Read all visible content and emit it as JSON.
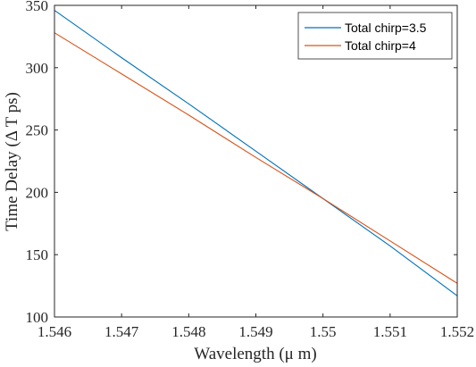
{
  "chart_data": {
    "type": "line",
    "title": "",
    "xlabel": "Wavelength (μ m)",
    "ylabel": "Time Delay (Δ T ps)",
    "xlim": [
      1.546,
      1.552
    ],
    "ylim": [
      100,
      350
    ],
    "xticks": [
      1.546,
      1.547,
      1.548,
      1.549,
      1.55,
      1.551,
      1.552
    ],
    "xtick_labels": [
      "1.546",
      "1.547",
      "1.548",
      "1.549",
      "1.55",
      "1.551",
      "1.552"
    ],
    "yticks": [
      100,
      150,
      200,
      250,
      300,
      350
    ],
    "ytick_labels": [
      "100",
      "150",
      "200",
      "250",
      "300",
      "350"
    ],
    "grid": false,
    "legend_position": "top-right",
    "series": [
      {
        "name": "Total chirp=3.5",
        "color": "#0072BD",
        "x": [
          1.546,
          1.547,
          1.548,
          1.549,
          1.55,
          1.551,
          1.552
        ],
        "y": [
          346,
          308,
          271,
          233,
          195,
          157,
          117
        ]
      },
      {
        "name": "Total chirp=4",
        "color": "#D95319",
        "x": [
          1.546,
          1.547,
          1.548,
          1.549,
          1.55,
          1.551,
          1.552
        ],
        "y": [
          328,
          295,
          262,
          228,
          195,
          161,
          127
        ]
      }
    ]
  }
}
